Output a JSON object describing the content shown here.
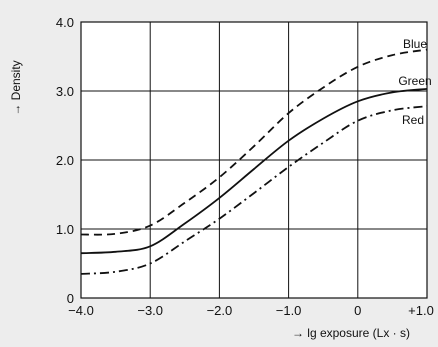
{
  "chart_data": {
    "type": "line",
    "title": "",
    "xlabel": "→ lg exposure (Lx · s)",
    "ylabel": "→ Density",
    "xlim": [
      -4.0,
      1.0
    ],
    "ylim": [
      0,
      4.0
    ],
    "grid": true,
    "legend": "inline labels at right end of curves",
    "x_ticks": [
      {
        "value": -4.0,
        "label": "−4.0"
      },
      {
        "value": -3.0,
        "label": "−3.0"
      },
      {
        "value": -2.0,
        "label": "−2.0"
      },
      {
        "value": -1.0,
        "label": "−1.0"
      },
      {
        "value": 0,
        "label": "0"
      },
      {
        "value": 1.0,
        "label": "+1.0"
      }
    ],
    "y_ticks": [
      {
        "value": 0,
        "label": "0"
      },
      {
        "value": 1.0,
        "label": "1.0"
      },
      {
        "value": 2.0,
        "label": "2.0"
      },
      {
        "value": 3.0,
        "label": "3.0"
      },
      {
        "value": 4.0,
        "label": "4.0"
      }
    ],
    "x": [
      -4.0,
      -3.5,
      -3.0,
      -2.5,
      -2.0,
      -1.5,
      -1.0,
      -0.5,
      0,
      0.5,
      1.0
    ],
    "series": [
      {
        "name": "Blue",
        "style": "dashed",
        "color": "#111111",
        "values": [
          0.92,
          0.93,
          1.05,
          1.38,
          1.75,
          2.2,
          2.68,
          3.05,
          3.35,
          3.52,
          3.6
        ]
      },
      {
        "name": "Green",
        "style": "solid",
        "color": "#111111",
        "values": [
          0.65,
          0.67,
          0.75,
          1.08,
          1.45,
          1.87,
          2.28,
          2.6,
          2.85,
          2.98,
          3.03
        ]
      },
      {
        "name": "Red",
        "style": "dashdot",
        "color": "#111111",
        "values": [
          0.35,
          0.38,
          0.5,
          0.82,
          1.15,
          1.52,
          1.9,
          2.25,
          2.57,
          2.72,
          2.78
        ]
      }
    ]
  },
  "colors": {
    "background": "#ededed",
    "plot_area": "#ffffff",
    "grid": "#111111",
    "text": "#111111"
  }
}
